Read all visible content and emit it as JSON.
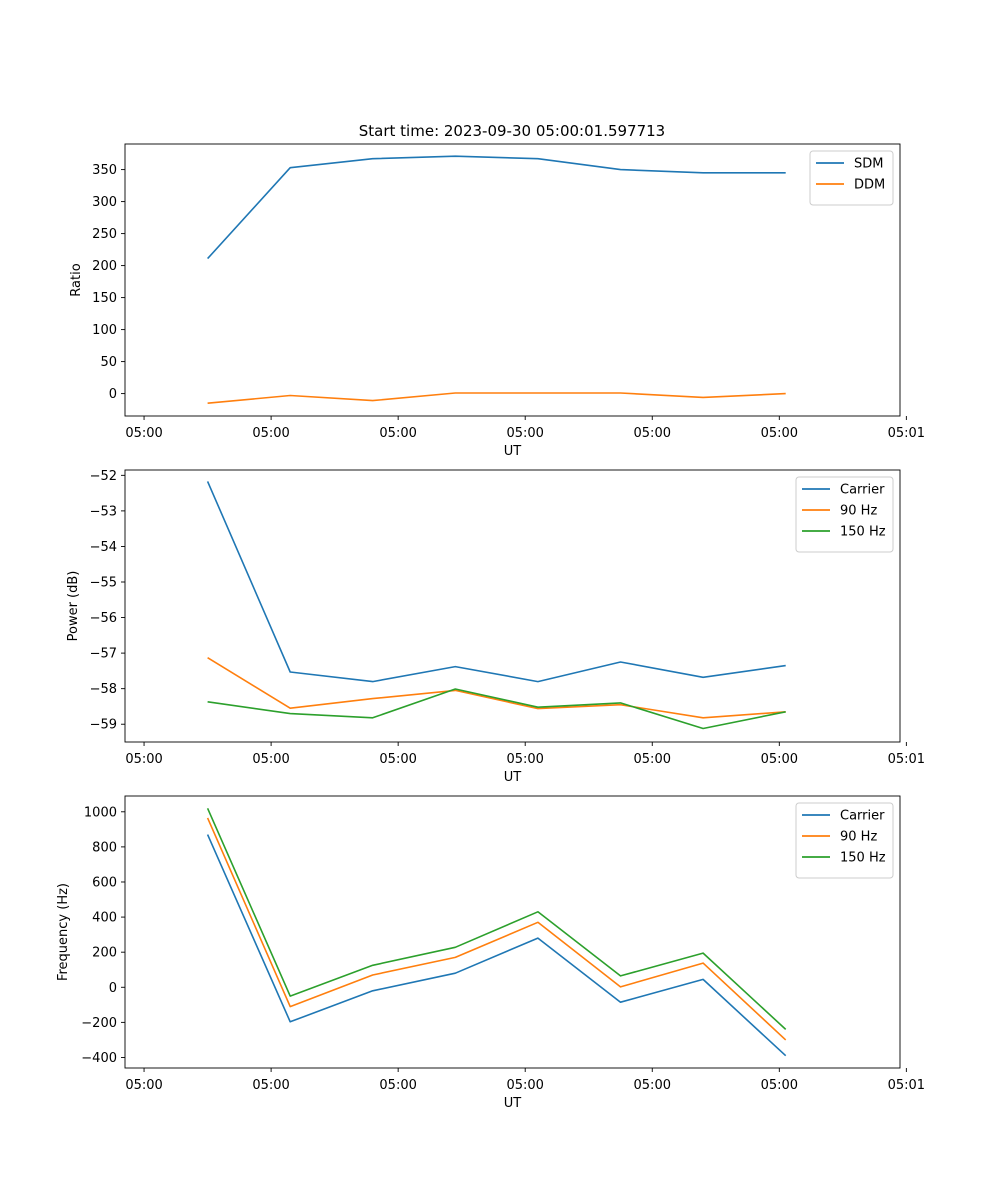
{
  "title": "Start time: 2023-09-30 05:00:01.597713",
  "colors": {
    "blue": "#1f77b4",
    "orange": "#ff7f0e",
    "green": "#2ca02c"
  },
  "chart_data": [
    {
      "type": "line",
      "xlabel": "UT",
      "ylabel": "Ratio",
      "x": [
        0.5,
        1.15,
        1.8,
        2.45,
        3.1,
        3.75,
        4.4,
        5.05
      ],
      "xlim": [
        -0.15,
        5.95
      ],
      "xticks": [
        0,
        1,
        2,
        3,
        4,
        5,
        6
      ],
      "xtick_labels": [
        "05:00",
        "05:00",
        "05:00",
        "05:00",
        "05:00",
        "05:00",
        "05:01"
      ],
      "ylim": [
        -35,
        390
      ],
      "yticks": [
        0,
        50,
        100,
        150,
        200,
        250,
        300,
        350
      ],
      "ytick_labels": [
        "0",
        "50",
        "100",
        "150",
        "200",
        "250",
        "300",
        "350"
      ],
      "legend_position": "top-right",
      "series": [
        {
          "name": "SDM",
          "color": "blue",
          "values": [
            211,
            353,
            367,
            371,
            367,
            350,
            345,
            345
          ]
        },
        {
          "name": "DDM",
          "color": "orange",
          "values": [
            -15,
            -3,
            -11,
            1,
            1,
            1,
            -6,
            0
          ]
        }
      ]
    },
    {
      "type": "line",
      "xlabel": "UT",
      "ylabel": "Power (dB)",
      "x": [
        0.5,
        1.15,
        1.8,
        2.45,
        3.1,
        3.75,
        4.4,
        5.05
      ],
      "xlim": [
        -0.15,
        5.95
      ],
      "xticks": [
        0,
        1,
        2,
        3,
        4,
        5,
        6
      ],
      "xtick_labels": [
        "05:00",
        "05:00",
        "05:00",
        "05:00",
        "05:00",
        "05:00",
        "05:01"
      ],
      "ylim": [
        -59.5,
        -51.85
      ],
      "yticks": [
        -59,
        -58,
        -57,
        -56,
        -55,
        -54,
        -53,
        -52
      ],
      "ytick_labels": [
        "−59",
        "−58",
        "−57",
        "−56",
        "−55",
        "−54",
        "−53",
        "−52"
      ],
      "legend_position": "top-right",
      "series": [
        {
          "name": "Carrier",
          "color": "blue",
          "values": [
            -52.17,
            -57.53,
            -57.8,
            -57.38,
            -57.8,
            -57.25,
            -57.68,
            -57.35
          ]
        },
        {
          "name": "90 Hz",
          "color": "orange",
          "values": [
            -57.13,
            -58.55,
            -58.28,
            -58.05,
            -58.56,
            -58.45,
            -58.82,
            -58.65
          ]
        },
        {
          "name": "150 Hz",
          "color": "green",
          "values": [
            -58.37,
            -58.7,
            -58.82,
            -58.01,
            -58.52,
            -58.4,
            -59.12,
            -58.65
          ]
        }
      ]
    },
    {
      "type": "line",
      "xlabel": "UT",
      "ylabel": "Frequency (Hz)",
      "x": [
        0.5,
        1.15,
        1.8,
        2.45,
        3.1,
        3.75,
        4.4,
        5.05
      ],
      "xlim": [
        -0.15,
        5.95
      ],
      "xticks": [
        0,
        1,
        2,
        3,
        4,
        5,
        6
      ],
      "xtick_labels": [
        "05:00",
        "05:00",
        "05:00",
        "05:00",
        "05:00",
        "05:00",
        "05:01"
      ],
      "ylim": [
        -460,
        1090
      ],
      "yticks": [
        -400,
        -200,
        0,
        200,
        400,
        600,
        800,
        1000
      ],
      "ytick_labels": [
        "−400",
        "−200",
        "0",
        "200",
        "400",
        "600",
        "800",
        "1000"
      ],
      "legend_position": "top-right",
      "series": [
        {
          "name": "Carrier",
          "color": "blue",
          "values": [
            870,
            -197,
            -20,
            80,
            280,
            -85,
            45,
            -390
          ]
        },
        {
          "name": "90 Hz",
          "color": "orange",
          "values": [
            965,
            -110,
            70,
            170,
            370,
            2,
            138,
            -300
          ]
        },
        {
          "name": "150 Hz",
          "color": "green",
          "values": [
            1020,
            -50,
            125,
            228,
            430,
            65,
            195,
            -240
          ]
        }
      ]
    }
  ]
}
